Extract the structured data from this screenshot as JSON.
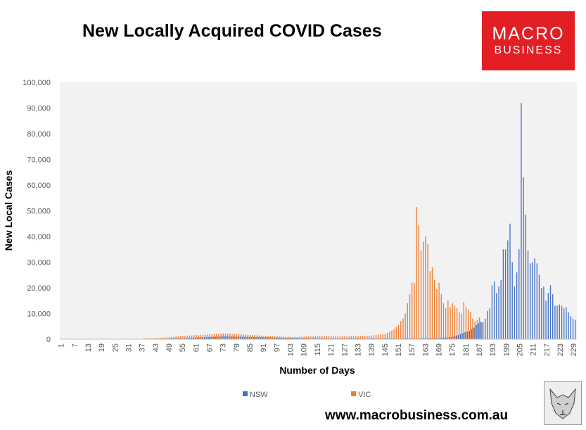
{
  "title": "New Locally Acquired COVID Cases",
  "logo": {
    "line1": "MACRO",
    "line2": "BUSINESS"
  },
  "footer": "www.macrobusiness.com.au",
  "colors": {
    "nsw": "#4472c4",
    "vic": "#ed7d31",
    "plot_bg": "#f2f2f2",
    "logo_bg": "#e31e24"
  },
  "icons": {
    "logo": "macro-business-logo",
    "wolf": "wolf-sketch-icon"
  },
  "chart_data": {
    "type": "bar",
    "xlabel": "Number of Days",
    "ylabel": "New Local Cases",
    "ylim": [
      0,
      100000
    ],
    "yticks": [
      "0",
      "10,000",
      "20,000",
      "30,000",
      "40,000",
      "50,000",
      "60,000",
      "70,000",
      "80,000",
      "90,000",
      "100,000"
    ],
    "xticks": [
      "1",
      "7",
      "13",
      "19",
      "25",
      "31",
      "37",
      "43",
      "49",
      "55",
      "61",
      "67",
      "73",
      "79",
      "85",
      "91",
      "97",
      "103",
      "109",
      "115",
      "121",
      "127",
      "133",
      "139",
      "145",
      "151",
      "157",
      "163",
      "169",
      "175",
      "181",
      "187",
      "193",
      "199",
      "205",
      "211",
      "217",
      "223",
      "229"
    ],
    "xrange": [
      1,
      230
    ],
    "legend": "bottom-center",
    "grid": false,
    "series": [
      {
        "name": "NSW",
        "points": [
          [
            40,
            100
          ],
          [
            45,
            200
          ],
          [
            50,
            300
          ],
          [
            55,
            400
          ],
          [
            60,
            600
          ],
          [
            65,
            800
          ],
          [
            70,
            1000
          ],
          [
            75,
            1100
          ],
          [
            80,
            1000
          ],
          [
            85,
            900
          ],
          [
            90,
            800
          ],
          [
            95,
            700
          ],
          [
            100,
            600
          ],
          [
            105,
            500
          ],
          [
            110,
            400
          ],
          [
            115,
            300
          ],
          [
            120,
            300
          ],
          [
            125,
            250
          ],
          [
            130,
            300
          ],
          [
            135,
            300
          ],
          [
            140,
            300
          ],
          [
            145,
            300
          ],
          [
            150,
            300
          ],
          [
            155,
            300
          ],
          [
            160,
            300
          ],
          [
            165,
            400
          ],
          [
            170,
            500
          ],
          [
            173,
            700
          ],
          [
            175,
            900
          ],
          [
            177,
            1400
          ],
          [
            179,
            2000
          ],
          [
            181,
            2700
          ],
          [
            183,
            3300
          ],
          [
            185,
            4500
          ],
          [
            186,
            5500
          ],
          [
            187,
            6200
          ],
          [
            188,
            6800
          ],
          [
            189,
            6600
          ],
          [
            190,
            8000
          ],
          [
            191,
            11000
          ],
          [
            192,
            12000
          ],
          [
            193,
            21000
          ],
          [
            194,
            22500
          ],
          [
            195,
            18000
          ],
          [
            196,
            20500
          ],
          [
            197,
            23000
          ],
          [
            198,
            35000
          ],
          [
            199,
            35000
          ],
          [
            200,
            38500
          ],
          [
            201,
            45000
          ],
          [
            202,
            30000
          ],
          [
            203,
            20500
          ],
          [
            204,
            26000
          ],
          [
            205,
            35000
          ],
          [
            206,
            92000
          ],
          [
            207,
            63000
          ],
          [
            208,
            48500
          ],
          [
            209,
            34500
          ],
          [
            210,
            29500
          ],
          [
            211,
            30000
          ],
          [
            212,
            31500
          ],
          [
            213,
            29500
          ],
          [
            214,
            25000
          ],
          [
            215,
            20000
          ],
          [
            216,
            20500
          ],
          [
            217,
            15000
          ],
          [
            218,
            18000
          ],
          [
            219,
            21000
          ],
          [
            220,
            17500
          ],
          [
            221,
            13000
          ],
          [
            222,
            13000
          ],
          [
            223,
            13500
          ],
          [
            224,
            13000
          ],
          [
            225,
            12000
          ],
          [
            226,
            12500
          ],
          [
            227,
            10500
          ],
          [
            228,
            9000
          ],
          [
            229,
            8000
          ],
          [
            230,
            7500
          ]
        ]
      },
      {
        "name": "VIC",
        "points": [
          [
            37,
            300
          ],
          [
            40,
            400
          ],
          [
            43,
            500
          ],
          [
            46,
            600
          ],
          [
            49,
            800
          ],
          [
            52,
            1000
          ],
          [
            55,
            1300
          ],
          [
            58,
            1400
          ],
          [
            61,
            1600
          ],
          [
            64,
            1700
          ],
          [
            67,
            1900
          ],
          [
            70,
            2000
          ],
          [
            73,
            2200
          ],
          [
            76,
            2100
          ],
          [
            79,
            2000
          ],
          [
            82,
            1900
          ],
          [
            85,
            1700
          ],
          [
            88,
            1500
          ],
          [
            91,
            1300
          ],
          [
            94,
            1200
          ],
          [
            97,
            1100
          ],
          [
            100,
            1000
          ],
          [
            103,
            900
          ],
          [
            106,
            900
          ],
          [
            109,
            1000
          ],
          [
            112,
            1100
          ],
          [
            115,
            1100
          ],
          [
            118,
            1200
          ],
          [
            121,
            1200
          ],
          [
            124,
            1100
          ],
          [
            127,
            1100
          ],
          [
            130,
            1100
          ],
          [
            133,
            1200
          ],
          [
            136,
            1300
          ],
          [
            139,
            1400
          ],
          [
            142,
            1800
          ],
          [
            145,
            2000
          ],
          [
            147,
            2800
          ],
          [
            149,
            4000
          ],
          [
            151,
            5500
          ],
          [
            152,
            7000
          ],
          [
            153,
            8000
          ],
          [
            154,
            10000
          ],
          [
            155,
            14000
          ],
          [
            156,
            17500
          ],
          [
            157,
            22000
          ],
          [
            158,
            22000
          ],
          [
            159,
            51500
          ],
          [
            160,
            44500
          ],
          [
            161,
            34500
          ],
          [
            162,
            38000
          ],
          [
            163,
            40000
          ],
          [
            164,
            37000
          ],
          [
            165,
            26500
          ],
          [
            166,
            28000
          ],
          [
            167,
            23000
          ],
          [
            168,
            19500
          ],
          [
            169,
            22000
          ],
          [
            170,
            17500
          ],
          [
            171,
            14000
          ],
          [
            172,
            12000
          ],
          [
            173,
            15000
          ],
          [
            174,
            12500
          ],
          [
            175,
            14000
          ],
          [
            176,
            13000
          ],
          [
            177,
            12000
          ],
          [
            178,
            10500
          ],
          [
            179,
            10000
          ],
          [
            180,
            14500
          ],
          [
            181,
            12500
          ],
          [
            182,
            11500
          ],
          [
            183,
            10500
          ],
          [
            184,
            8000
          ],
          [
            185,
            7000
          ],
          [
            186,
            7500
          ],
          [
            187,
            8500
          ],
          [
            188,
            6500
          ]
        ]
      }
    ]
  }
}
